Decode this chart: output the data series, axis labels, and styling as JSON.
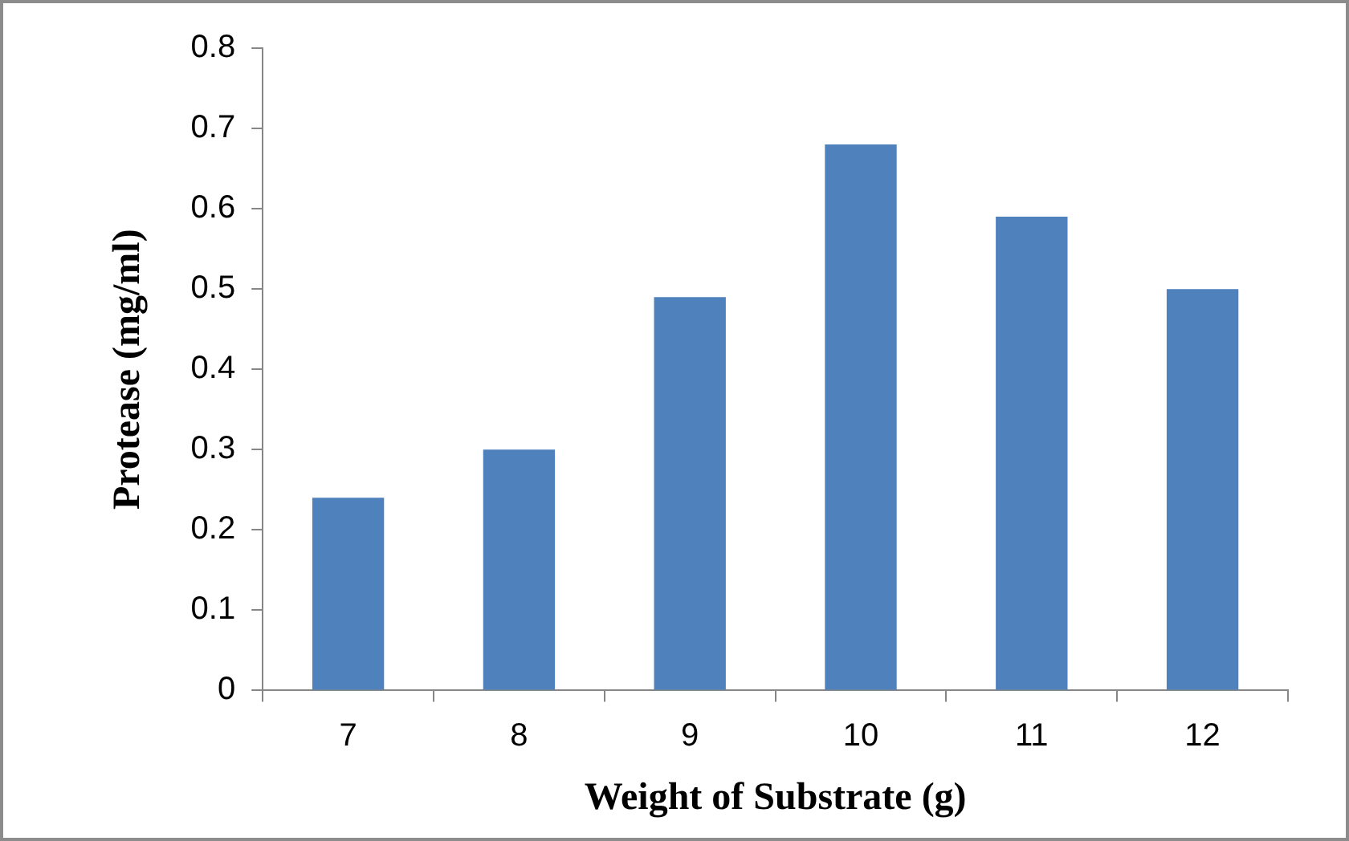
{
  "chart_data": {
    "type": "bar",
    "xlabel": "Weight of Substrate (g)",
    "ylabel": "Protease (mg/ml)",
    "categories": [
      "7",
      "8",
      "9",
      "10",
      "11",
      "12"
    ],
    "values": [
      0.24,
      0.3,
      0.49,
      0.68,
      0.59,
      0.5
    ],
    "color": "#4f81bd",
    "ylim": [
      0,
      0.8
    ],
    "yticks": [
      0,
      0.1,
      0.2,
      0.3,
      0.4,
      0.5,
      0.6,
      0.7,
      0.8
    ],
    "grid": false,
    "legend": false
  }
}
